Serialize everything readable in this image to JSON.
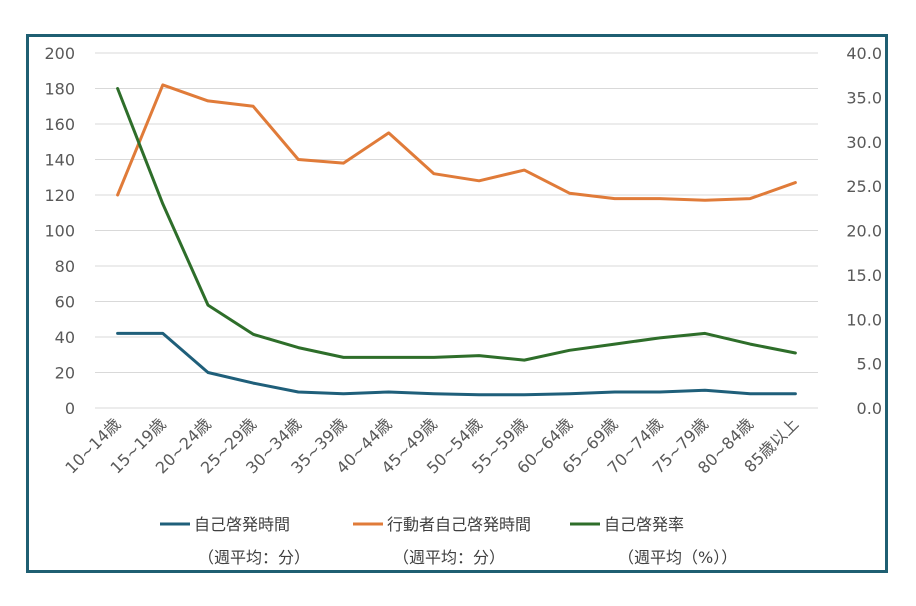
{
  "chart_data": {
    "type": "line",
    "categories": [
      "10~14歳",
      "15~19歳",
      "20~24歳",
      "25~29歳",
      "30~34歳",
      "35~39歳",
      "40~44歳",
      "45~49歳",
      "50~54歳",
      "55~59歳",
      "60~64歳",
      "65~69歳",
      "70~74歳",
      "75~79歳",
      "80~84歳",
      "85歳以上"
    ],
    "y_left": {
      "min": 0,
      "max": 200,
      "step": 20,
      "ticks": [
        "0",
        "20",
        "40",
        "60",
        "80",
        "100",
        "120",
        "140",
        "160",
        "180",
        "200"
      ]
    },
    "y_right": {
      "min": 0,
      "max": 40,
      "step": 5,
      "ticks": [
        "0.0",
        "5.0",
        "10.0",
        "15.0",
        "20.0",
        "25.0",
        "30.0",
        "35.0",
        "40.0"
      ]
    },
    "series": [
      {
        "name": "自己啓発時間",
        "unit": "（週平均：分）",
        "axis": "left",
        "color": "#1f5f7a",
        "values": [
          42,
          42,
          20,
          14,
          9,
          8,
          9,
          8,
          7.5,
          7.5,
          8,
          9,
          9,
          10,
          8,
          8
        ]
      },
      {
        "name": "行動者自己啓発時間",
        "unit": "（週平均：分）",
        "axis": "left",
        "color": "#e07b39",
        "values": [
          120,
          182,
          173,
          170,
          140,
          138,
          155,
          132,
          128,
          134,
          121,
          118,
          118,
          117,
          118,
          127
        ]
      },
      {
        "name": "自己啓発率",
        "unit": "（週平均（%））",
        "axis": "right",
        "color": "#2e6e2a",
        "values": [
          36.0,
          23.0,
          11.6,
          8.3,
          6.8,
          5.7,
          5.7,
          5.7,
          5.9,
          5.4,
          6.5,
          7.2,
          7.9,
          8.4,
          7.2,
          6.2
        ]
      }
    ],
    "gridlines": true,
    "legend_position": "bottom"
  }
}
